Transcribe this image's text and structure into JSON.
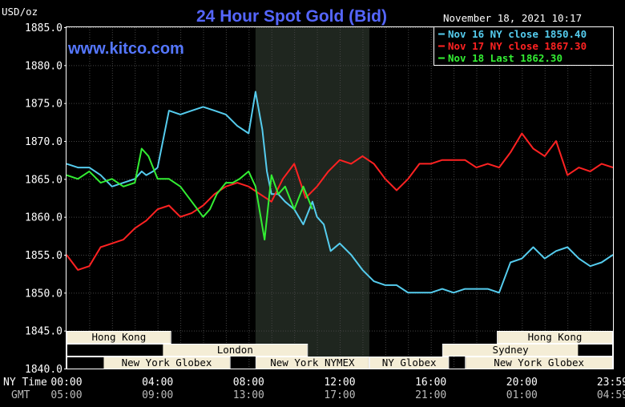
{
  "chart_data": {
    "type": "line",
    "title": "24 Hour Spot Gold (Bid)",
    "website": "www.kitco.com",
    "unit_label": "USD/oz",
    "timestamp": "November 18, 2021 10:17",
    "ylim": [
      1840,
      1885
    ],
    "y_ticks": [
      "1885.0",
      "1880.0",
      "1875.0",
      "1870.0",
      "1865.0",
      "1860.0",
      "1855.0",
      "1850.0",
      "1845.0",
      "1840.0"
    ],
    "x_range_hours": [
      0,
      24
    ],
    "x_row_labels": {
      "ny": "NY Time",
      "gmt": "GMT"
    },
    "x_ticks": [
      {
        "h": 0,
        "ny": "00:00",
        "gmt": "05:00"
      },
      {
        "h": 4,
        "ny": "04:00",
        "gmt": "09:00"
      },
      {
        "h": 8,
        "ny": "08:00",
        "gmt": "13:00"
      },
      {
        "h": 12,
        "ny": "12:00",
        "gmt": "17:00"
      },
      {
        "h": 16,
        "ny": "16:00",
        "gmt": "21:00"
      },
      {
        "h": 20,
        "ny": "20:00",
        "gmt": "01:00"
      },
      {
        "h": 23.98,
        "ny": "23:59",
        "gmt": "04:59"
      }
    ],
    "shaded_region_hours": [
      8.3,
      13.3
    ],
    "legend": [
      {
        "label": "Nov 16 NY close 1850.40",
        "color": "#55ccee"
      },
      {
        "label": "Nov 17 NY close 1867.30",
        "color": "#ff2222"
      },
      {
        "label": "Nov 18 Last 1862.30",
        "color": "#33ee33"
      }
    ],
    "sessions": [
      {
        "label": "Hong Kong",
        "start": 0,
        "end": 4.6,
        "row": 0
      },
      {
        "label": "Hong Kong",
        "start": 18.9,
        "end": 24,
        "row": 0
      },
      {
        "label": "London",
        "start": 0,
        "end": 10.6,
        "row": 1,
        "label_at": 4.2,
        "label_end": 10.6
      },
      {
        "label": "Sydney",
        "start": 16.5,
        "end": 24,
        "row": 1,
        "label_at": 16.5,
        "label_end": 22.5
      },
      {
        "label": "New York Globex",
        "start": 0,
        "end": 7.2,
        "row": 2,
        "label_at": 1.6
      },
      {
        "label": "New York NYMEX",
        "start": 8.3,
        "end": 13.3,
        "row": 2
      },
      {
        "label": "NY Globex",
        "start": 13.3,
        "end": 16.8,
        "row": 2
      },
      {
        "label": "New York Globex",
        "start": 17.5,
        "end": 24,
        "row": 2
      }
    ],
    "series": [
      {
        "name": "Nov 16 NY close 1850.40",
        "color": "#55ccee",
        "x": [
          0,
          0.5,
          1,
          1.5,
          2,
          2.5,
          3,
          3.3,
          3.5,
          3.8,
          4,
          4.5,
          5,
          5.5,
          6,
          6.5,
          7,
          7.5,
          8,
          8.3,
          8.6,
          8.8,
          9,
          9.3,
          9.6,
          10,
          10.4,
          10.8,
          11,
          11.3,
          11.6,
          12,
          12.5,
          13,
          13.5,
          14,
          14.5,
          15,
          15.5,
          16,
          16.5,
          17,
          17.5,
          18,
          18.5,
          19,
          19.5,
          20,
          20.5,
          21,
          21.5,
          22,
          22.5,
          23,
          23.5,
          24
        ],
        "y": [
          1867,
          1866.5,
          1866.5,
          1865.5,
          1864,
          1864.5,
          1865,
          1866,
          1865.5,
          1866,
          1866.5,
          1874,
          1873.5,
          1874,
          1874.5,
          1874,
          1873.5,
          1872,
          1871,
          1876.5,
          1871.5,
          1866,
          1863,
          1863,
          1862,
          1861,
          1859,
          1862,
          1860,
          1859,
          1855.5,
          1856.5,
          1855,
          1853,
          1851.5,
          1851,
          1851,
          1850,
          1850,
          1850,
          1850.5,
          1850,
          1850.5,
          1850.5,
          1850.5,
          1850,
          1854,
          1854.5,
          1856,
          1854.5,
          1855.5,
          1856,
          1854.5,
          1853.5,
          1854,
          1855
        ]
      },
      {
        "name": "Nov 17 NY close 1867.30",
        "color": "#ff2222",
        "x": [
          0,
          0.5,
          1,
          1.5,
          2,
          2.5,
          3,
          3.5,
          4,
          4.5,
          5,
          5.5,
          6,
          6.5,
          7,
          7.5,
          8,
          8.5,
          9,
          9.5,
          10,
          10.5,
          11,
          11.5,
          12,
          12.5,
          13,
          13.5,
          14,
          14.5,
          15,
          15.5,
          16,
          16.5,
          17,
          17.5,
          18,
          18.5,
          19,
          19.5,
          20,
          20.5,
          21,
          21.5,
          22,
          22.5,
          23,
          23.5,
          24
        ],
        "y": [
          1855,
          1853,
          1853.5,
          1856,
          1856.5,
          1857,
          1858.5,
          1859.5,
          1861,
          1861.5,
          1860,
          1860.5,
          1861.5,
          1863,
          1864,
          1864.5,
          1864,
          1863,
          1862,
          1865,
          1867,
          1862.5,
          1864,
          1866,
          1867.5,
          1867,
          1868,
          1867,
          1865,
          1863.5,
          1865,
          1867,
          1867,
          1867.5,
          1867.5,
          1867.5,
          1866.5,
          1867,
          1866.5,
          1868.5,
          1871,
          1869,
          1868,
          1870,
          1865.5,
          1866.5,
          1866,
          1867,
          1866.5
        ]
      },
      {
        "name": "Nov 18 Last 1862.30",
        "color": "#33ee33",
        "x": [
          0,
          0.5,
          1,
          1.5,
          2,
          2.5,
          3,
          3.3,
          3.6,
          4,
          4.5,
          5,
          5.5,
          6,
          6.3,
          6.6,
          7,
          7.3,
          7.6,
          8,
          8.3,
          8.5,
          8.7,
          9,
          9.3,
          9.6,
          10,
          10.4,
          10.8
        ],
        "y": [
          1865.5,
          1865,
          1866,
          1864.5,
          1865,
          1864,
          1864.5,
          1869,
          1868,
          1865,
          1865,
          1864,
          1862,
          1860,
          1861,
          1863,
          1864.5,
          1864.5,
          1865,
          1866,
          1864,
          1860.5,
          1857,
          1865.5,
          1863,
          1864,
          1861,
          1864,
          1861
        ]
      }
    ]
  }
}
